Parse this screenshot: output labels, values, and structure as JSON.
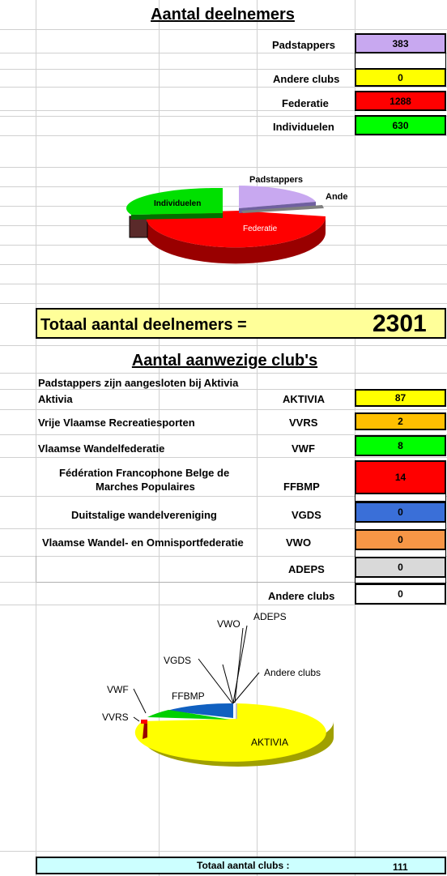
{
  "section1": {
    "title": "Aantal deelnemers",
    "rows": [
      {
        "label": "Padstappers",
        "value": "383",
        "color": "#c8a8f0"
      },
      {
        "label": "Andere clubs",
        "value": "0",
        "color": "#ffff00"
      },
      {
        "label": "Federatie",
        "value": "1288",
        "color": "#ff0000"
      },
      {
        "label": "Individuelen",
        "value": "630",
        "color": "#00ff00"
      }
    ],
    "total_label": "Totaal aantal deelnemers =",
    "total_value": "2301"
  },
  "chart1": {
    "type": "pie",
    "labels": [
      "Padstappers",
      "Andere clubs",
      "Federatie",
      "Individuelen"
    ],
    "values": [
      383,
      0,
      1288,
      630
    ],
    "colors": [
      "#c8a8f0",
      "#7f7f7f",
      "#ff0000",
      "#00ff00"
    ]
  },
  "section2": {
    "title": "Aantal aanwezige club's",
    "note": "Padstappers  zijn aangesloten bij Aktivia",
    "rows": [
      {
        "name": "Aktivia",
        "code": "AKTIVIA",
        "value": "87",
        "color": "#ffff00"
      },
      {
        "name": "Vrije Vlaamse Recreatiesporten",
        "code": "VVRS",
        "value": "2",
        "color": "#ffc000"
      },
      {
        "name": "Vlaamse Wandelfederatie",
        "code": "VWF",
        "value": "8",
        "color": "#00ff00"
      },
      {
        "name": "Fédération Francophone Belge de",
        "name2": "Marches Populaires",
        "code": "FFBMP",
        "value": "14",
        "color": "#ff0000"
      },
      {
        "name": "Duitstalige wandelvereniging",
        "code": "VGDS",
        "value": "0",
        "color": "#3a6fd8"
      },
      {
        "name": "Vlaamse Wandel- en Omnisportfederatie",
        "code": "VWO",
        "value": "0",
        "color": "#f79646"
      },
      {
        "name": "",
        "code": "ADEPS",
        "value": "0",
        "color": "#d9d9d9"
      },
      {
        "name": "",
        "code": "Andere clubs",
        "value": "0",
        "color": "#ffffff"
      }
    ],
    "total_label": "Totaal aantal clubs :",
    "total_value": "111"
  },
  "chart2": {
    "type": "pie",
    "labels": [
      "AKTIVIA",
      "VVRS",
      "VWF",
      "FFBMP",
      "VGDS",
      "VWO",
      "ADEPS",
      "Andere clubs"
    ],
    "values": [
      87,
      2,
      8,
      14,
      0,
      0,
      0,
      0
    ],
    "colors": [
      "#ffff00",
      "#ffc000",
      "#00ff00",
      "#1060c0",
      "#3a6fd8",
      "#f79646",
      "#d9d9d9",
      "#ffffff"
    ]
  }
}
